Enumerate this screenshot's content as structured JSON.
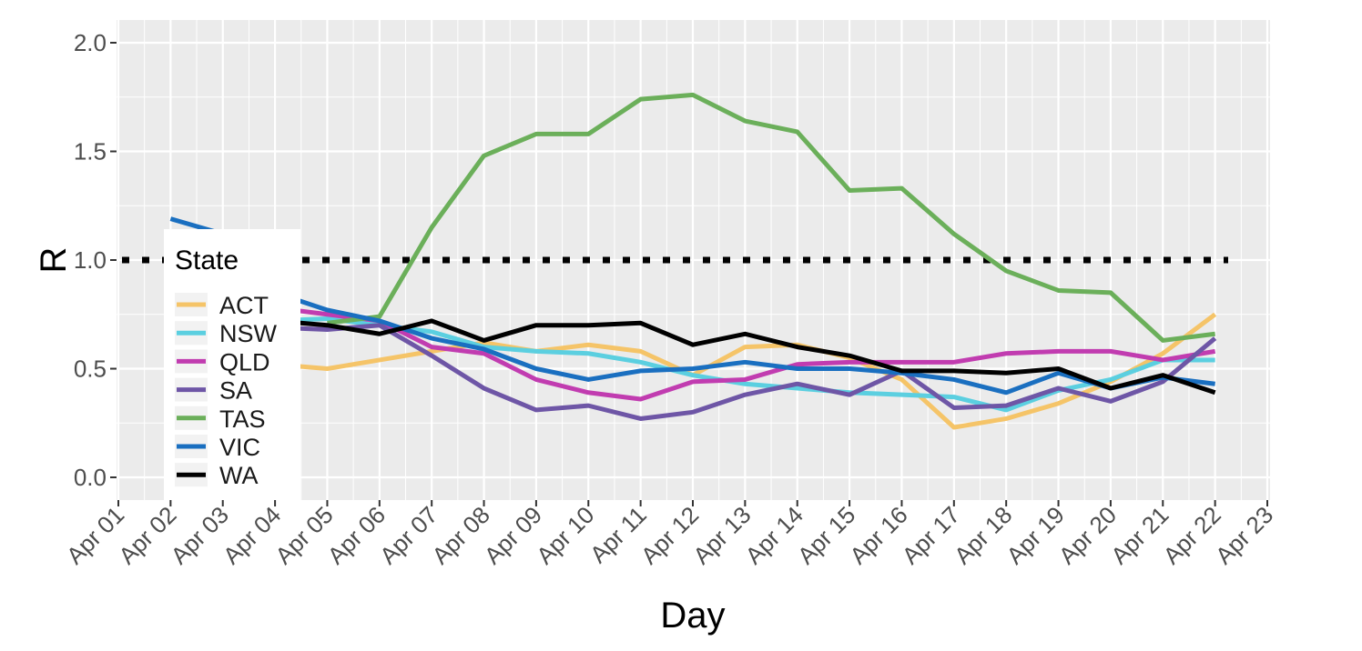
{
  "chart_data": {
    "type": "line",
    "xlabel": "Day",
    "ylabel": "R",
    "x_ticks": [
      "Apr 01",
      "Apr 02",
      "Apr 03",
      "Apr 04",
      "Apr 05",
      "Apr 06",
      "Apr 07",
      "Apr 08",
      "Apr 09",
      "Apr 10",
      "Apr 11",
      "Apr 12",
      "Apr 13",
      "Apr 14",
      "Apr 15",
      "Apr 16",
      "Apr 17",
      "Apr 18",
      "Apr 19",
      "Apr 20",
      "Apr 21",
      "Apr 22",
      "Apr 23"
    ],
    "y_ticks": [
      "0.0",
      "0.5",
      "1.0",
      "1.5",
      "2.0"
    ],
    "ylim": [
      -0.1,
      2.1
    ],
    "grid": true,
    "reference_line": {
      "y": 1.0,
      "style": "dotted",
      "color": "#000000"
    },
    "legend": {
      "title": "State",
      "placement": "left"
    },
    "series": [
      {
        "name": "ACT",
        "color": "#F5C468",
        "x": [
          "Apr 04",
          "Apr 05",
          "Apr 06",
          "Apr 07",
          "Apr 08",
          "Apr 09",
          "Apr 10",
          "Apr 11",
          "Apr 12",
          "Apr 13",
          "Apr 14",
          "Apr 15",
          "Apr 16",
          "Apr 17",
          "Apr 18",
          "Apr 19",
          "Apr 20",
          "Apr 21",
          "Apr 22"
        ],
        "values": [
          0.52,
          0.5,
          0.54,
          0.58,
          0.62,
          0.58,
          0.61,
          0.58,
          0.47,
          0.6,
          0.61,
          0.55,
          0.45,
          0.23,
          0.27,
          0.34,
          0.44,
          0.57,
          0.75
        ]
      },
      {
        "name": "NSW",
        "color": "#5BCFE0",
        "x": [
          "Apr 04",
          "Apr 05",
          "Apr 06",
          "Apr 07",
          "Apr 08",
          "Apr 09",
          "Apr 10",
          "Apr 11",
          "Apr 12",
          "Apr 13",
          "Apr 14",
          "Apr 15",
          "Apr 16",
          "Apr 17",
          "Apr 18",
          "Apr 19",
          "Apr 20",
          "Apr 21",
          "Apr 22"
        ],
        "values": [
          0.72,
          0.73,
          0.7,
          0.67,
          0.6,
          0.58,
          0.57,
          0.53,
          0.47,
          0.43,
          0.41,
          0.39,
          0.38,
          0.37,
          0.31,
          0.4,
          0.45,
          0.54,
          0.54
        ]
      },
      {
        "name": "QLD",
        "color": "#C13CB0",
        "x": [
          "Apr 04",
          "Apr 05",
          "Apr 06",
          "Apr 07",
          "Apr 08",
          "Apr 09",
          "Apr 10",
          "Apr 11",
          "Apr 12",
          "Apr 13",
          "Apr 14",
          "Apr 15",
          "Apr 16",
          "Apr 17",
          "Apr 18",
          "Apr 19",
          "Apr 20",
          "Apr 21",
          "Apr 22"
        ],
        "values": [
          0.78,
          0.75,
          0.72,
          0.6,
          0.57,
          0.45,
          0.39,
          0.36,
          0.44,
          0.45,
          0.52,
          0.53,
          0.53,
          0.53,
          0.57,
          0.58,
          0.58,
          0.54,
          0.58
        ]
      },
      {
        "name": "SA",
        "color": "#6E56A6",
        "x": [
          "Apr 04",
          "Apr 05",
          "Apr 06",
          "Apr 07",
          "Apr 08",
          "Apr 09",
          "Apr 10",
          "Apr 11",
          "Apr 12",
          "Apr 13",
          "Apr 14",
          "Apr 15",
          "Apr 16",
          "Apr 17",
          "Apr 18",
          "Apr 19",
          "Apr 20",
          "Apr 21",
          "Apr 22"
        ],
        "values": [
          0.69,
          0.68,
          0.7,
          0.56,
          0.41,
          0.31,
          0.33,
          0.27,
          0.3,
          0.38,
          0.43,
          0.38,
          0.49,
          0.32,
          0.33,
          0.41,
          0.35,
          0.44,
          0.64
        ]
      },
      {
        "name": "TAS",
        "color": "#6BAF5A",
        "x": [
          "Apr 05",
          "Apr 06",
          "Apr 07",
          "Apr 08",
          "Apr 09",
          "Apr 10",
          "Apr 11",
          "Apr 12",
          "Apr 13",
          "Apr 14",
          "Apr 15",
          "Apr 16",
          "Apr 17",
          "Apr 18",
          "Apr 19",
          "Apr 20",
          "Apr 21",
          "Apr 22"
        ],
        "values": [
          0.71,
          0.74,
          1.15,
          1.48,
          1.58,
          1.58,
          1.74,
          1.76,
          1.64,
          1.59,
          1.32,
          1.33,
          1.12,
          0.95,
          0.86,
          0.85,
          0.63,
          0.66
        ]
      },
      {
        "name": "VIC",
        "color": "#1A6FC0",
        "x": [
          "Apr 02",
          "Apr 03",
          "Apr 04",
          "Apr 05",
          "Apr 06",
          "Apr 07",
          "Apr 08",
          "Apr 09",
          "Apr 10",
          "Apr 11",
          "Apr 12",
          "Apr 13",
          "Apr 14",
          "Apr 15",
          "Apr 16",
          "Apr 17",
          "Apr 18",
          "Apr 19",
          "Apr 20",
          "Apr 21",
          "Apr 22"
        ],
        "values": [
          1.19,
          1.12,
          0.85,
          0.77,
          0.72,
          0.64,
          0.59,
          0.5,
          0.45,
          0.49,
          0.5,
          0.53,
          0.5,
          0.5,
          0.48,
          0.45,
          0.39,
          0.48,
          0.41,
          0.46,
          0.43
        ]
      },
      {
        "name": "WA",
        "color": "#000000",
        "x": [
          "Apr 04",
          "Apr 05",
          "Apr 06",
          "Apr 07",
          "Apr 08",
          "Apr 09",
          "Apr 10",
          "Apr 11",
          "Apr 12",
          "Apr 13",
          "Apr 14",
          "Apr 15",
          "Apr 16",
          "Apr 17",
          "Apr 18",
          "Apr 19",
          "Apr 20",
          "Apr 21",
          "Apr 22"
        ],
        "values": [
          0.72,
          0.7,
          0.66,
          0.72,
          0.63,
          0.7,
          0.7,
          0.71,
          0.61,
          0.66,
          0.6,
          0.56,
          0.49,
          0.49,
          0.48,
          0.5,
          0.41,
          0.47,
          0.39
        ]
      }
    ]
  }
}
